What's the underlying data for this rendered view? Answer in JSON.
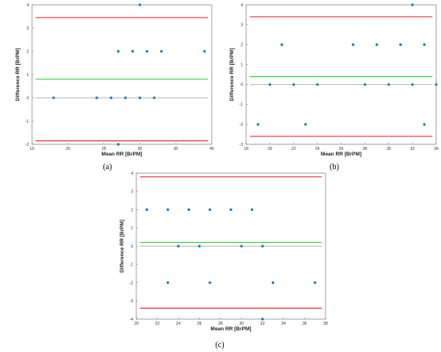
{
  "colors": {
    "loa": "#e8373b",
    "bias": "#33d63a",
    "zero": "#9a9a9a",
    "point": "#1f77b4",
    "frame": "#666666"
  },
  "chart_data": [
    {
      "type": "scatter",
      "panel_label": "(a)",
      "xlabel": "Mean RR [BrPM]",
      "ylabel": "Difference RR [BrPM]",
      "xlim": [
        15,
        40
      ],
      "ylim": [
        -2,
        4
      ],
      "xticks": [
        15,
        20,
        25,
        30,
        35,
        40
      ],
      "yticks": [
        -2,
        -1,
        0,
        1,
        2,
        3,
        4
      ],
      "upper_loa": 3.45,
      "bias": 0.8,
      "lower_loa": -1.85,
      "points": [
        {
          "x": 18,
          "y": 0
        },
        {
          "x": 24,
          "y": 0
        },
        {
          "x": 26,
          "y": 0
        },
        {
          "x": 28,
          "y": 0
        },
        {
          "x": 30,
          "y": 0
        },
        {
          "x": 32,
          "y": 0
        },
        {
          "x": 27,
          "y": 2
        },
        {
          "x": 29,
          "y": 2
        },
        {
          "x": 31,
          "y": 2
        },
        {
          "x": 33,
          "y": 2
        },
        {
          "x": 39,
          "y": 2
        },
        {
          "x": 30,
          "y": 4
        },
        {
          "x": 27,
          "y": -2
        }
      ]
    },
    {
      "type": "scatter",
      "panel_label": "(b)",
      "xlabel": "Mean RR [BrPM]",
      "ylabel": "Difference RR [BrPM]",
      "xlim": [
        18,
        34
      ],
      "ylim": [
        -3,
        4
      ],
      "xticks": [
        18,
        20,
        22,
        24,
        26,
        28,
        30,
        32,
        34
      ],
      "yticks": [
        -3,
        -2,
        -1,
        0,
        1,
        2,
        3,
        4
      ],
      "upper_loa": 3.4,
      "bias": 0.4,
      "lower_loa": -2.6,
      "points": [
        {
          "x": 19,
          "y": -2
        },
        {
          "x": 20,
          "y": 0
        },
        {
          "x": 21,
          "y": 2
        },
        {
          "x": 22,
          "y": 0
        },
        {
          "x": 23,
          "y": -2
        },
        {
          "x": 24,
          "y": 0
        },
        {
          "x": 27,
          "y": 2
        },
        {
          "x": 28,
          "y": 0
        },
        {
          "x": 29,
          "y": 2
        },
        {
          "x": 30,
          "y": 0
        },
        {
          "x": 31,
          "y": 2
        },
        {
          "x": 32,
          "y": 0
        },
        {
          "x": 32,
          "y": 4
        },
        {
          "x": 33,
          "y": 2
        },
        {
          "x": 33,
          "y": -2
        },
        {
          "x": 34,
          "y": 0
        }
      ]
    },
    {
      "type": "scatter",
      "panel_label": "(c)",
      "xlabel": "Mean RR [BrPM]",
      "ylabel": "Difference RR [BrPM]",
      "xlim": [
        20,
        38
      ],
      "ylim": [
        -4,
        4
      ],
      "xticks": [
        20,
        22,
        24,
        26,
        28,
        30,
        32,
        34,
        36,
        38
      ],
      "yticks": [
        -4,
        -3,
        -2,
        -1,
        0,
        1,
        2,
        3,
        4
      ],
      "upper_loa": 3.8,
      "bias": 0.2,
      "lower_loa": -3.4,
      "points": [
        {
          "x": 21,
          "y": 2
        },
        {
          "x": 23,
          "y": 2
        },
        {
          "x": 25,
          "y": 2
        },
        {
          "x": 27,
          "y": 2
        },
        {
          "x": 29,
          "y": 2
        },
        {
          "x": 31,
          "y": 2
        },
        {
          "x": 24,
          "y": 0
        },
        {
          "x": 26,
          "y": 0
        },
        {
          "x": 30,
          "y": 0
        },
        {
          "x": 32,
          "y": 0
        },
        {
          "x": 23,
          "y": -2
        },
        {
          "x": 27,
          "y": -2
        },
        {
          "x": 33,
          "y": -2
        },
        {
          "x": 37,
          "y": -2
        },
        {
          "x": 32,
          "y": -4
        }
      ]
    }
  ]
}
